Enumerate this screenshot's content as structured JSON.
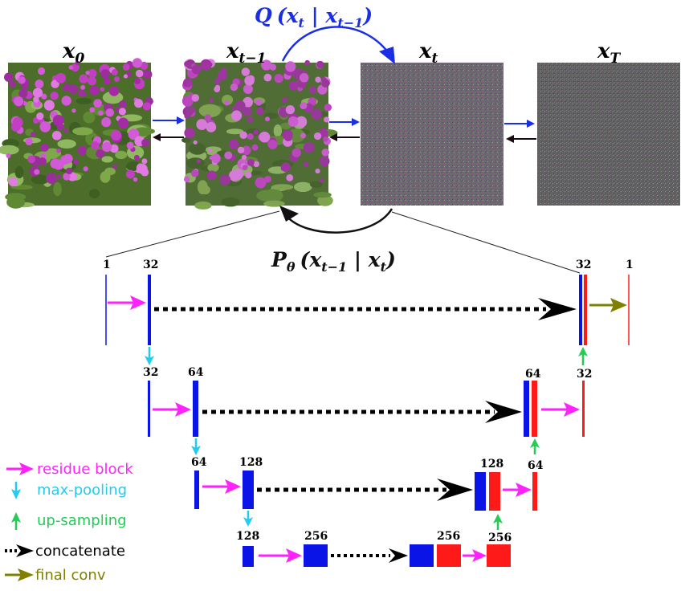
{
  "diffusion": {
    "images": [
      {
        "label": "x",
        "sub": "0"
      },
      {
        "label": "x",
        "sub": "t−1"
      },
      {
        "label": "x",
        "sub": "t"
      },
      {
        "label": "x",
        "sub": "T"
      }
    ],
    "forward": {
      "fn": "Q",
      "expr": "(x",
      "sub1": "t",
      "mid": " | x",
      "sub2": "t−1",
      "end": ")"
    },
    "reverse": {
      "fn": "P",
      "fn_sub": "θ",
      "expr": "(x",
      "sub1": "t−1",
      "mid": " | x",
      "sub2": "t",
      "end": ")"
    }
  },
  "unet": {
    "level1": {
      "in": "1",
      "a": "32",
      "b": "32",
      "out": "1"
    },
    "level2": {
      "a": "32",
      "b": "64",
      "c": "64",
      "d": "32"
    },
    "level3": {
      "a": "64",
      "b": "128",
      "c": "128",
      "d": "64"
    },
    "level4": {
      "a": "128",
      "b": "256",
      "c": "256",
      "d": "256"
    }
  },
  "legend": [
    {
      "label": "residue block",
      "color": "#ff22ff",
      "icon": "magenta-arrow-icon"
    },
    {
      "label": "max-pooling",
      "color": "#22ccee",
      "icon": "cyan-down-arrow-icon"
    },
    {
      "label": "up-sampling",
      "color": "#22cc55",
      "icon": "green-up-arrow-icon"
    },
    {
      "label": "concatenate",
      "color": "#000000",
      "icon": "dotted-black-arrow-icon"
    },
    {
      "label": "final conv",
      "color": "#808000",
      "icon": "olive-arrow-icon"
    }
  ],
  "colors": {
    "encoder": "#0a14e6",
    "decoder": "#ff1a1a",
    "residue": "#ff22ff",
    "pool": "#22ccee",
    "up": "#22cc55",
    "final": "#808000",
    "forward_arrow": "#1a2ee6",
    "reverse_arrow": "#1a0a14"
  }
}
